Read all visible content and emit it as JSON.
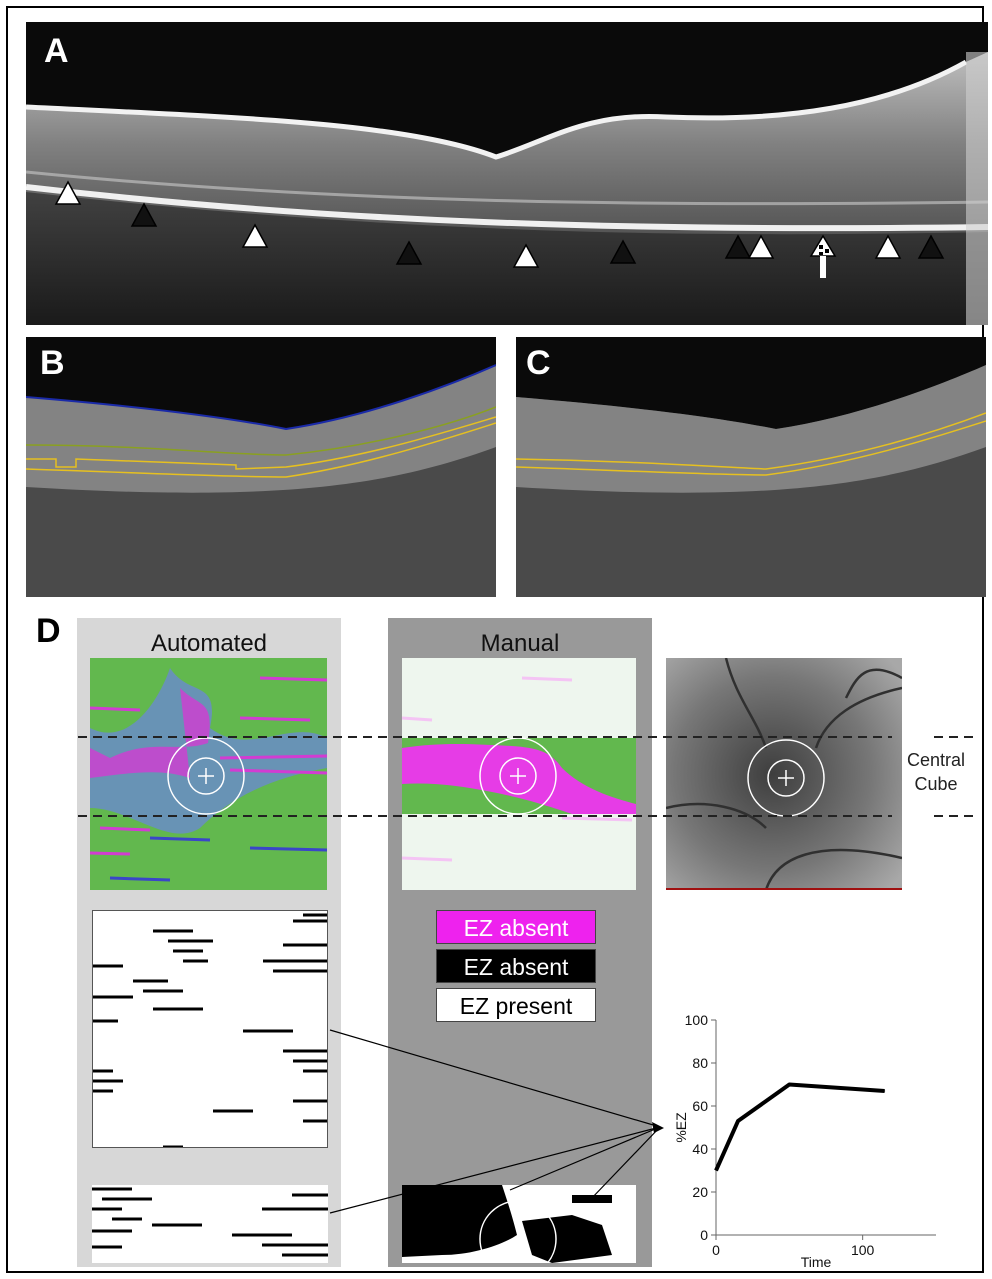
{
  "panels": {
    "a": {
      "letter": "A"
    },
    "b": {
      "letter": "B"
    },
    "c": {
      "letter": "C"
    },
    "d": {
      "letter": "D"
    }
  },
  "columns": {
    "automated": "Automated",
    "manual": "Manual"
  },
  "central_cube": {
    "line1": "Central",
    "line2": "Cube"
  },
  "legend": [
    {
      "label": "EZ absent",
      "bg": "#ee22ee",
      "fg": "#ffffff"
    },
    {
      "label": "EZ absent",
      "bg": "#000000",
      "fg": "#ffffff"
    },
    {
      "label": "EZ present",
      "bg": "#ffffff",
      "fg": "#000000"
    }
  ],
  "chart_data": {
    "type": "line",
    "ylabel": "%EZ",
    "xlabel": "Time",
    "xlim": [
      0,
      150
    ],
    "ylim": [
      0,
      100
    ],
    "yticks": [
      0,
      20,
      40,
      60,
      80,
      100
    ],
    "xticks": [
      0,
      100
    ],
    "series": [
      {
        "x": [
          0,
          15,
          50,
          115
        ],
        "y": [
          30,
          53,
          70,
          67
        ]
      }
    ]
  }
}
